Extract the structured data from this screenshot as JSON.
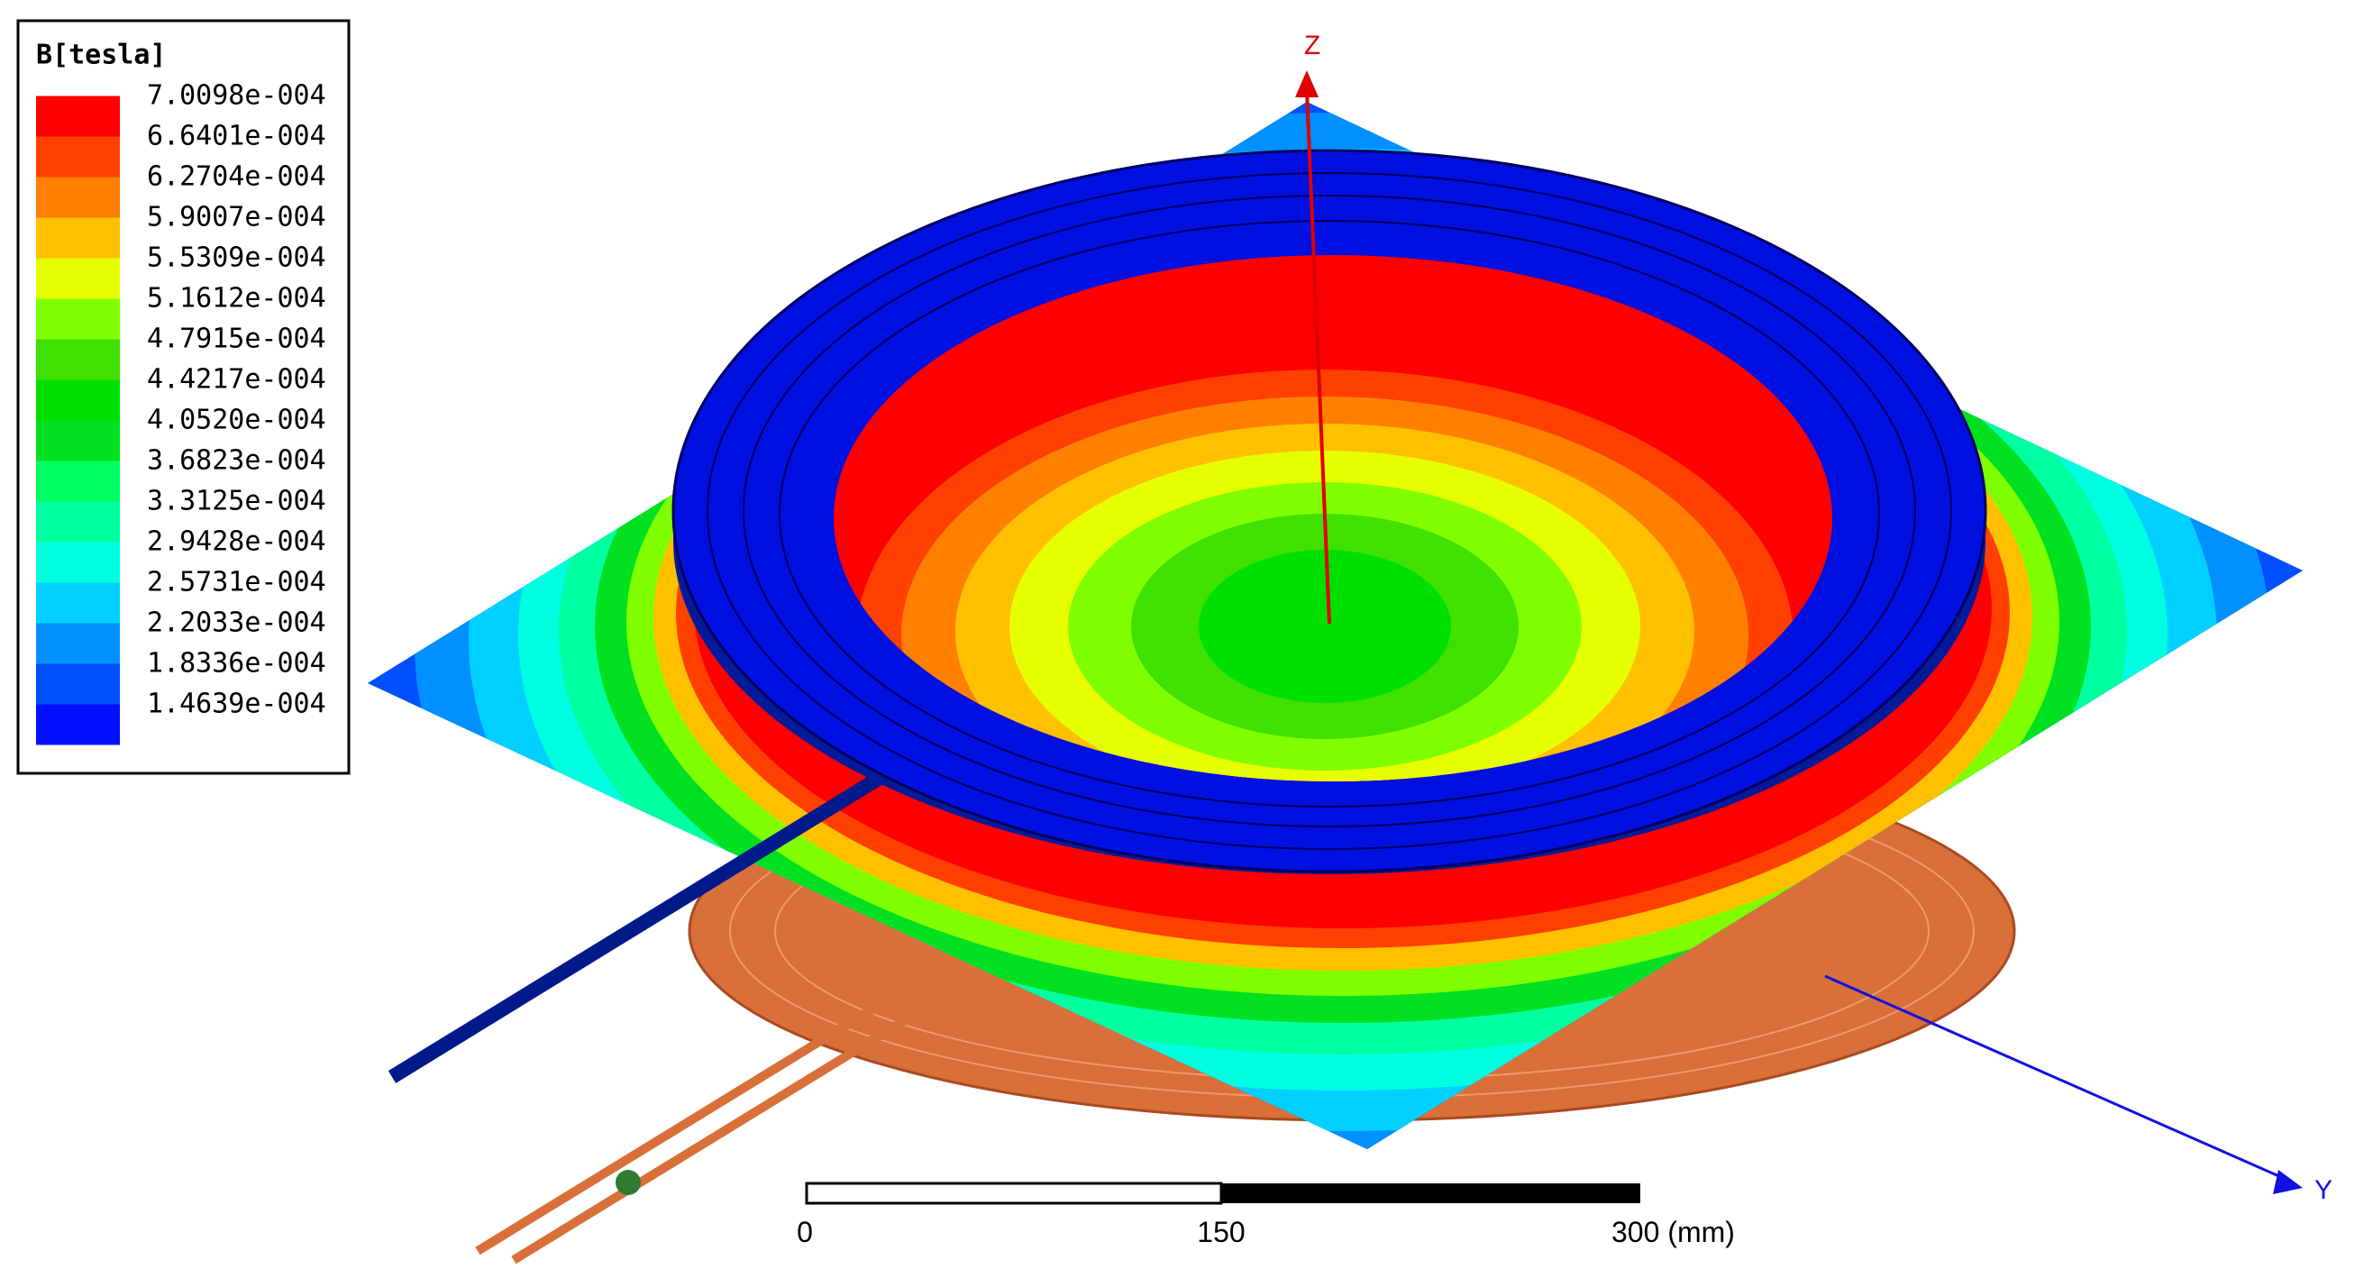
{
  "legend": {
    "title": "B[tesla]",
    "entries": [
      {
        "label": "7.0098e-004",
        "color": "#ff0000"
      },
      {
        "label": "6.6401e-004",
        "color": "#ff4000"
      },
      {
        "label": "6.2704e-004",
        "color": "#ff8000"
      },
      {
        "label": "5.9007e-004",
        "color": "#ffc000"
      },
      {
        "label": "5.5309e-004",
        "color": "#e6ff00"
      },
      {
        "label": "5.1612e-004",
        "color": "#80ff00"
      },
      {
        "label": "4.7915e-004",
        "color": "#40e000"
      },
      {
        "label": "4.4217e-004",
        "color": "#00e000"
      },
      {
        "label": "4.0520e-004",
        "color": "#00e020"
      },
      {
        "label": "3.6823e-004",
        "color": "#00ff60"
      },
      {
        "label": "3.3125e-004",
        "color": "#00ffa0"
      },
      {
        "label": "2.9428e-004",
        "color": "#00ffe0"
      },
      {
        "label": "2.5731e-004",
        "color": "#00d0ff"
      },
      {
        "label": "2.2033e-004",
        "color": "#0090ff"
      },
      {
        "label": "1.8336e-004",
        "color": "#0050ff"
      },
      {
        "label": "1.4639e-004",
        "color": "#0010ff"
      }
    ]
  },
  "axes": {
    "z": "Z",
    "y": "Y"
  },
  "scale_bar": {
    "labels": [
      "0",
      "150",
      "300 (mm)"
    ]
  }
}
